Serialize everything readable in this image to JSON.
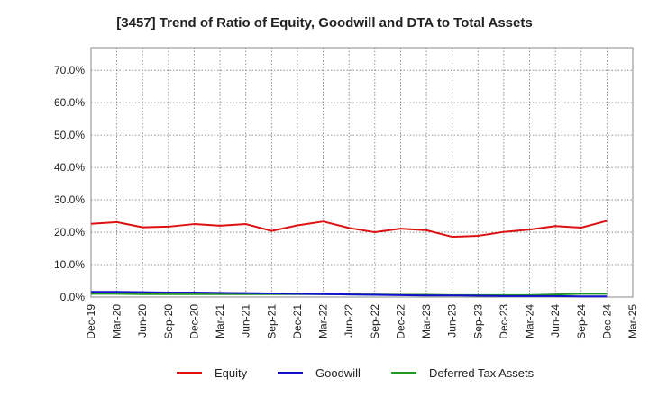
{
  "chart_data": {
    "type": "line",
    "title": "[3457]  Trend of Ratio of Equity, Goodwill and DTA to Total Assets",
    "xlabel": "",
    "ylabel": "",
    "x_ticks": [
      "Dec-19",
      "Mar-20",
      "Jun-20",
      "Sep-20",
      "Dec-20",
      "Mar-21",
      "Jun-21",
      "Sep-21",
      "Dec-21",
      "Mar-22",
      "Jun-22",
      "Sep-22",
      "Dec-22",
      "Mar-23",
      "Jun-23",
      "Sep-23",
      "Dec-23",
      "Mar-24",
      "Jun-24",
      "Sep-24",
      "Dec-24",
      "Mar-25"
    ],
    "y_ticks": [
      "0.0%",
      "10.0%",
      "20.0%",
      "30.0%",
      "40.0%",
      "50.0%",
      "60.0%",
      "70.0%"
    ],
    "ylim": [
      0,
      77
    ],
    "grid": true,
    "legend_position": "bottom",
    "series": [
      {
        "name": "Equity",
        "color": "#dd1111",
        "x": [
          "Dec-19",
          "Mar-20",
          "Jun-20",
          "Sep-20",
          "Dec-20",
          "Mar-21",
          "Jun-21",
          "Sep-21",
          "Dec-21",
          "Mar-22",
          "Jun-22",
          "Sep-22",
          "Dec-22",
          "Mar-23",
          "Jun-23",
          "Sep-23",
          "Dec-23",
          "Mar-24",
          "Jun-24",
          "Sep-24",
          "Dec-24"
        ],
        "values": [
          22.6,
          23.1,
          21.5,
          21.7,
          22.5,
          22.0,
          22.5,
          20.4,
          22.1,
          23.3,
          21.3,
          20.0,
          21.1,
          20.6,
          18.6,
          18.9,
          20.1,
          20.8,
          21.9,
          21.4,
          23.5
        ]
      },
      {
        "name": "Goodwill",
        "color": "#1111cc",
        "x": [
          "Dec-19",
          "Mar-20",
          "Jun-20",
          "Sep-20",
          "Dec-20",
          "Mar-21",
          "Jun-21",
          "Sep-21",
          "Dec-21",
          "Mar-22",
          "Jun-22",
          "Sep-22",
          "Dec-22",
          "Mar-23",
          "Jun-23",
          "Sep-23",
          "Dec-23",
          "Mar-24",
          "Jun-24",
          "Sep-24",
          "Dec-24"
        ],
        "values": [
          1.6,
          1.6,
          1.5,
          1.4,
          1.4,
          1.3,
          1.2,
          1.1,
          1.0,
          0.9,
          0.8,
          0.7,
          0.6,
          0.5,
          0.5,
          0.4,
          0.3,
          0.3,
          0.3,
          0.2,
          0.2
        ]
      },
      {
        "name": "Deferred Tax Assets",
        "color": "#229922",
        "x": [
          "Dec-19",
          "Mar-20",
          "Jun-20",
          "Sep-20",
          "Dec-20",
          "Mar-21",
          "Jun-21",
          "Sep-21",
          "Dec-21",
          "Mar-22",
          "Jun-22",
          "Sep-22",
          "Dec-22",
          "Mar-23",
          "Jun-23",
          "Sep-23",
          "Dec-23",
          "Mar-24",
          "Jun-24",
          "Sep-24",
          "Dec-24"
        ],
        "values": [
          1.0,
          1.0,
          0.9,
          0.9,
          0.9,
          0.9,
          0.9,
          0.9,
          0.9,
          0.9,
          0.8,
          0.8,
          0.7,
          0.7,
          0.6,
          0.6,
          0.6,
          0.6,
          0.8,
          1.0,
          1.0
        ]
      }
    ]
  }
}
